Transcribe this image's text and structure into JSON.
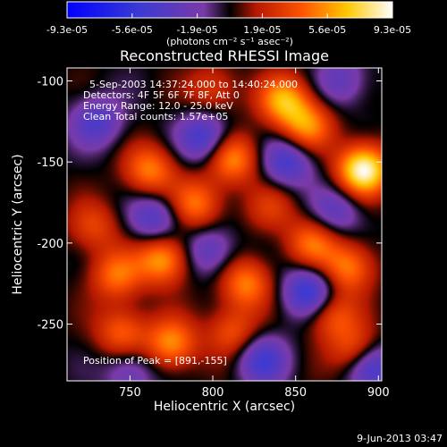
{
  "chart_data": {
    "type": "heatmap",
    "title": "Reconstructed RHESSI Image",
    "xlabel": "Heliocentric X (arcsec)",
    "ylabel": "Heliocentric Y (arcsec)",
    "xlim": [
      712,
      902
    ],
    "ylim": [
      -285,
      -92
    ],
    "x_ticks": [
      750,
      800,
      850,
      900
    ],
    "y_ticks": [
      -100,
      -150,
      -200,
      -250
    ],
    "colorbar": {
      "ticks": [
        "-9.3e-05",
        "-5.6e-05",
        "-1.9e-05",
        "1.9e-05",
        "5.6e-05",
        "9.3e-05"
      ],
      "unit_label": "(photons cm⁻² s⁻¹ asec⁻²)",
      "range": [
        -9.3e-05,
        9.3e-05
      ],
      "colormap": "blue-purple-red-yellow-white"
    },
    "annotations": [
      "5-Sep-2003 14:37:24.000 to 14:40:24.000",
      "Detectors: 4F 5F 6F 7F 8F, Att 0",
      "Energy Range: 12.0 - 25.0 keV",
      "Clean     Total counts: 1.57e+05"
    ],
    "peak_label": "Position of Peak = [891,-155]",
    "peak": [
      891,
      -155
    ],
    "blobs": [
      {
        "x": 891,
        "y": -155,
        "v": 9.3e-05
      },
      {
        "x": 843,
        "y": -112,
        "v": 6e-05
      },
      {
        "x": 857,
        "y": -128,
        "v": 5.2e-05
      },
      {
        "x": 812,
        "y": -148,
        "v": 5.4e-05
      },
      {
        "x": 790,
        "y": -176,
        "v": 4.8e-05
      },
      {
        "x": 762,
        "y": -155,
        "v": 5e-05
      },
      {
        "x": 770,
        "y": -210,
        "v": 6e-05
      },
      {
        "x": 742,
        "y": -220,
        "v": 4.6e-05
      },
      {
        "x": 745,
        "y": -255,
        "v": 4.2e-05
      },
      {
        "x": 775,
        "y": -262,
        "v": 5.4e-05
      },
      {
        "x": 812,
        "y": -255,
        "v": 3.8e-05
      },
      {
        "x": 820,
        "y": -225,
        "v": 5e-05
      },
      {
        "x": 860,
        "y": -200,
        "v": 4.5e-05
      },
      {
        "x": 882,
        "y": -215,
        "v": 5e-05
      },
      {
        "x": 888,
        "y": -268,
        "v": 5.6e-05
      },
      {
        "x": 872,
        "y": -245,
        "v": 4e-05
      },
      {
        "x": 800,
        "y": -105,
        "v": 3e-05
      },
      {
        "x": 728,
        "y": -190,
        "v": 3.2e-05
      },
      {
        "x": 835,
        "y": -178,
        "v": 2.6e-05
      },
      {
        "x": 795,
        "y": -135,
        "v": -5e-05
      },
      {
        "x": 845,
        "y": -150,
        "v": -4.6e-05
      },
      {
        "x": 765,
        "y": -185,
        "v": -4.2e-05
      },
      {
        "x": 858,
        "y": -230,
        "v": -5.6e-05
      },
      {
        "x": 830,
        "y": -272,
        "v": -4.6e-05
      },
      {
        "x": 798,
        "y": -205,
        "v": -3.6e-05
      },
      {
        "x": 730,
        "y": -125,
        "v": -4e-05
      },
      {
        "x": 875,
        "y": -180,
        "v": -3.4e-05
      },
      {
        "x": 750,
        "y": -280,
        "v": -3e-05
      },
      {
        "x": 878,
        "y": -100,
        "v": -3e-05
      },
      {
        "x": 895,
        "y": -275,
        "v": -6.5e-05
      }
    ]
  },
  "footer": {
    "date": "9-Jun-2013 03:47"
  }
}
